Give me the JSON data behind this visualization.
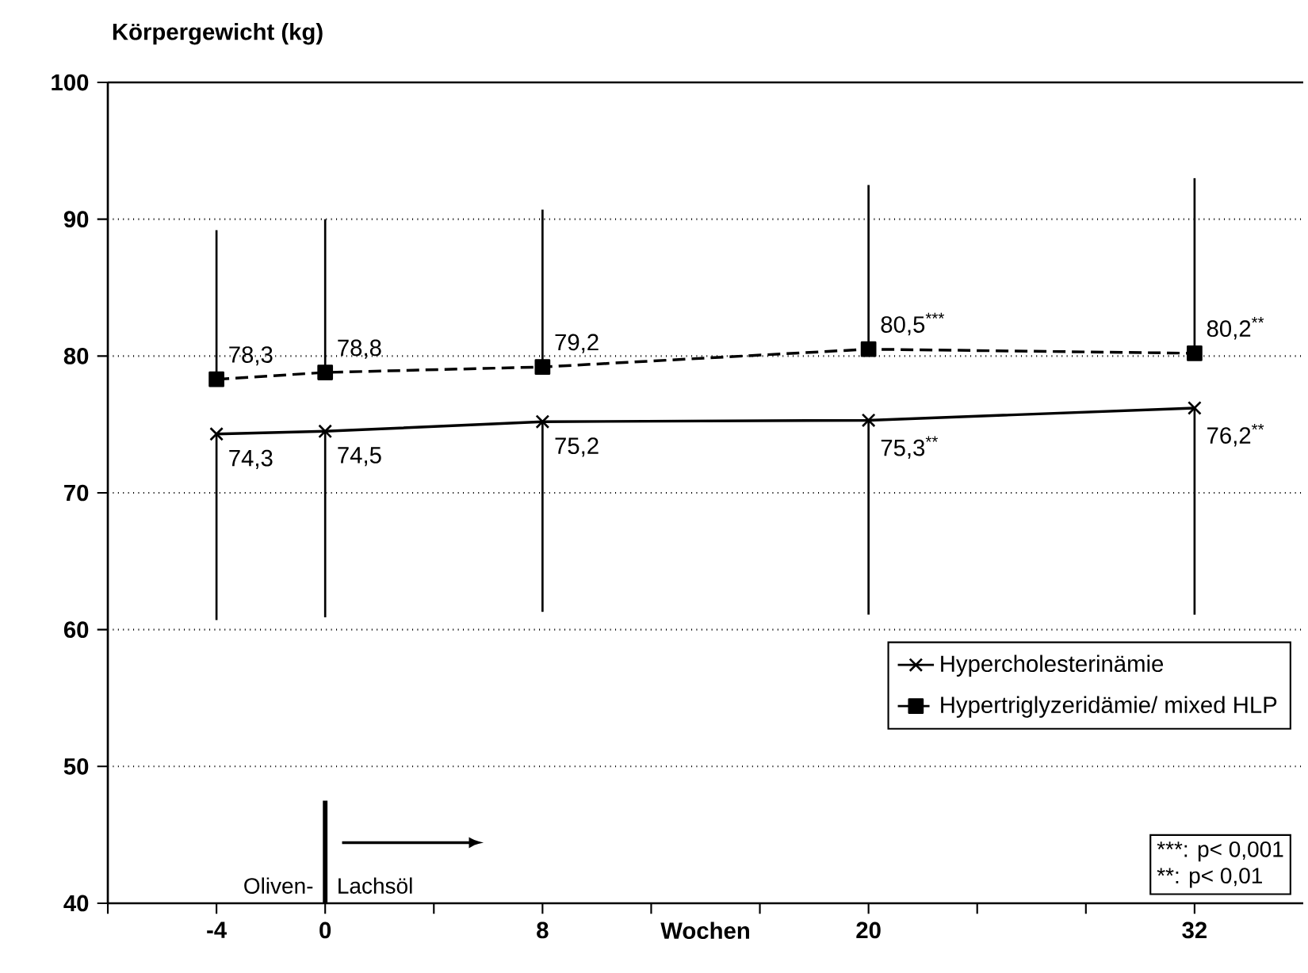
{
  "chart_data": {
    "type": "line",
    "ylabel": "Körpergewicht (kg)",
    "xlabel": "Wochen",
    "x": [
      -4,
      0,
      8,
      20,
      32
    ],
    "xlim": [
      -8,
      36
    ],
    "xticks": [
      {
        "value": -8,
        "label": null
      },
      -4,
      0,
      {
        "value": 4,
        "label": null
      },
      8,
      {
        "value": 12,
        "label": null
      },
      {
        "value": 16,
        "label": null
      },
      20,
      {
        "value": 24,
        "label": null
      },
      {
        "value": 28,
        "label": null
      },
      32
    ],
    "ylim": [
      40,
      100
    ],
    "yticks": [
      40,
      50,
      60,
      70,
      80,
      90,
      100
    ],
    "grid": "y",
    "legend": "bottom right",
    "series": [
      {
        "name": "Hypercholesterinämie",
        "color": "#000000",
        "marker": "cross",
        "line_style": "solid",
        "values": [
          74.3,
          74.5,
          75.2,
          75.3,
          76.2
        ],
        "errors": [
          [
            60.7,
            74.3
          ],
          [
            60.9,
            74.5
          ],
          [
            61.3,
            75.2
          ],
          [
            61.1,
            75.3
          ],
          [
            61.1,
            76.2
          ]
        ],
        "value_labels": [
          "74,3",
          "74,5",
          "75,2",
          "75,3$^{**}$",
          "76,2$^{**}$"
        ]
      },
      {
        "name": "Hypertriglyzeridämie/ mixed HLP",
        "color": "#000000",
        "marker": "square",
        "line_style": "dashed",
        "values": [
          78.3,
          78.8,
          79.2,
          80.5,
          80.2
        ],
        "errors": [
          [
            78.3,
            89.2
          ],
          [
            78.8,
            90.0
          ],
          [
            79.2,
            90.7
          ],
          [
            80.5,
            92.5
          ],
          [
            80.2,
            93.0
          ]
        ],
        "value_labels": [
          "78,3",
          "78,8",
          "79,2",
          "80,5$^{***}$",
          "80,2$^{**}$"
        ]
      }
    ],
    "ref_lines": [
      {
        "axis": "x",
        "value": 0,
        "label": null
      }
    ],
    "annotations": [
      "Oliven-",
      "Lachsöl",
      "***: p< 0,001",
      "**:   p< 0,01"
    ]
  }
}
